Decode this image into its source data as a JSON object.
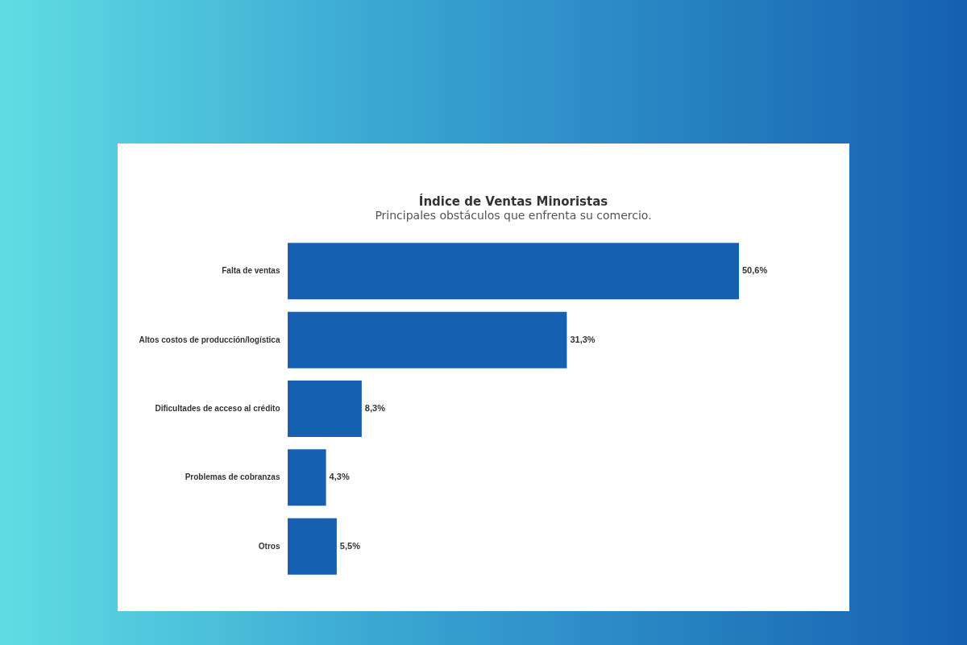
{
  "chart_data": {
    "type": "bar",
    "orientation": "horizontal",
    "title": "Índice de Ventas Minoristas",
    "subtitle": "Principales obstáculos que enfrenta su comercio.",
    "categories": [
      "Falta de ventas",
      "Altos costos de producción/logística",
      "Dificultades de acceso al crédito",
      "Problemas de cobranzas",
      "Otros"
    ],
    "values": [
      50.6,
      31.3,
      8.3,
      4.3,
      5.5
    ],
    "value_labels": [
      "50,6%",
      "31,3%",
      "8,3%",
      "4,3%",
      "5,5%"
    ],
    "color": "#1560b0",
    "tick_labels": "y"
  }
}
